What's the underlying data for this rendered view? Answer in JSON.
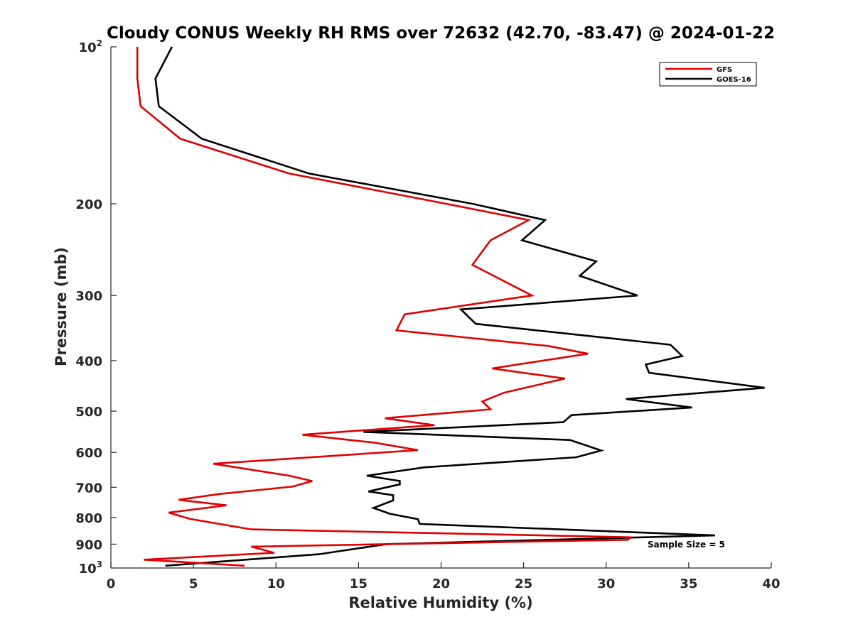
{
  "chart_data": {
    "type": "line",
    "title": "Cloudy CONUS Weekly RH RMS over 72632 (42.70, -83.47) @ 2024-01-22",
    "xlabel": "Relative Humidity (%)",
    "ylabel": "Pressure (mb)",
    "xlim": [
      0,
      40
    ],
    "ylim": [
      100,
      1000
    ],
    "yscale": "log",
    "y_reversed": true,
    "grid": false,
    "legend_position": "top-right",
    "x_ticks": [
      0,
      5,
      10,
      15,
      20,
      25,
      30,
      35,
      40
    ],
    "x_tick_labels": [
      "0",
      "5",
      "10",
      "15",
      "20",
      "25",
      "30",
      "35",
      "40"
    ],
    "y_ticks": [
      {
        "value": 100,
        "base": "10",
        "exp": "2",
        "label": ""
      },
      {
        "value": 200,
        "base": "",
        "exp": "",
        "label": "200"
      },
      {
        "value": 300,
        "base": "",
        "exp": "",
        "label": "300"
      },
      {
        "value": 400,
        "base": "",
        "exp": "",
        "label": "400"
      },
      {
        "value": 500,
        "base": "",
        "exp": "",
        "label": "500"
      },
      {
        "value": 600,
        "base": "",
        "exp": "",
        "label": "600"
      },
      {
        "value": 700,
        "base": "",
        "exp": "",
        "label": "700"
      },
      {
        "value": 800,
        "base": "",
        "exp": "",
        "label": "800"
      },
      {
        "value": 900,
        "base": "",
        "exp": "",
        "label": "900"
      },
      {
        "value": 1000,
        "base": "10",
        "exp": "3",
        "label": ""
      }
    ],
    "series": [
      {
        "name": "GFS",
        "color": "#e00000",
        "points": [
          [
            1.6,
            100
          ],
          [
            1.6,
            115
          ],
          [
            1.8,
            130
          ],
          [
            4.2,
            150
          ],
          [
            10.8,
            175
          ],
          [
            20.3,
            200
          ],
          [
            25.3,
            215
          ],
          [
            23.0,
            235
          ],
          [
            21.9,
            262
          ],
          [
            25.5,
            300
          ],
          [
            17.8,
            326
          ],
          [
            17.3,
            350
          ],
          [
            26.5,
            375
          ],
          [
            28.9,
            388
          ],
          [
            23.1,
            414
          ],
          [
            27.5,
            433
          ],
          [
            23.8,
            461
          ],
          [
            22.5,
            479
          ],
          [
            23.0,
            496
          ],
          [
            16.6,
            516
          ],
          [
            19.6,
            532
          ],
          [
            11.6,
            555
          ],
          [
            16.0,
            575
          ],
          [
            18.6,
            594
          ],
          [
            6.2,
            631
          ],
          [
            10.8,
            665
          ],
          [
            12.2,
            681
          ],
          [
            11.0,
            698
          ],
          [
            6.6,
            721
          ],
          [
            4.1,
            740
          ],
          [
            7.0,
            758
          ],
          [
            3.5,
            783
          ],
          [
            4.8,
            805
          ],
          [
            8.5,
            843
          ],
          [
            31.5,
            873
          ],
          [
            31.3,
            883
          ],
          [
            8.5,
            910
          ],
          [
            9.9,
            935
          ],
          [
            2.0,
            964
          ],
          [
            8.1,
            990
          ]
        ]
      },
      {
        "name": "GOES-16",
        "color": "#000000",
        "points": [
          [
            3.7,
            100
          ],
          [
            2.7,
            115
          ],
          [
            2.9,
            130
          ],
          [
            5.5,
            150
          ],
          [
            12.0,
            175
          ],
          [
            21.9,
            200
          ],
          [
            26.3,
            215
          ],
          [
            24.9,
            235
          ],
          [
            29.4,
            258
          ],
          [
            28.4,
            275
          ],
          [
            31.9,
            300
          ],
          [
            21.2,
            319
          ],
          [
            22.1,
            340
          ],
          [
            33.9,
            373
          ],
          [
            34.6,
            392
          ],
          [
            32.4,
            407
          ],
          [
            32.6,
            422
          ],
          [
            39.6,
            451
          ],
          [
            31.2,
            474
          ],
          [
            35.2,
            492
          ],
          [
            27.9,
            509
          ],
          [
            27.4,
            525
          ],
          [
            15.3,
            548
          ],
          [
            27.8,
            568
          ],
          [
            29.7,
            595
          ],
          [
            28.2,
            613
          ],
          [
            19.0,
            641
          ],
          [
            15.5,
            665
          ],
          [
            17.5,
            681
          ],
          [
            17.5,
            691
          ],
          [
            15.6,
            713
          ],
          [
            17.1,
            725
          ],
          [
            17.1,
            742
          ],
          [
            15.9,
            767
          ],
          [
            16.9,
            787
          ],
          [
            18.6,
            806
          ],
          [
            18.7,
            823
          ],
          [
            36.6,
            866
          ],
          [
            16.7,
            900
          ],
          [
            12.6,
            941
          ],
          [
            3.3,
            990
          ]
        ]
      }
    ],
    "annotation": "Sample Size = 5"
  }
}
